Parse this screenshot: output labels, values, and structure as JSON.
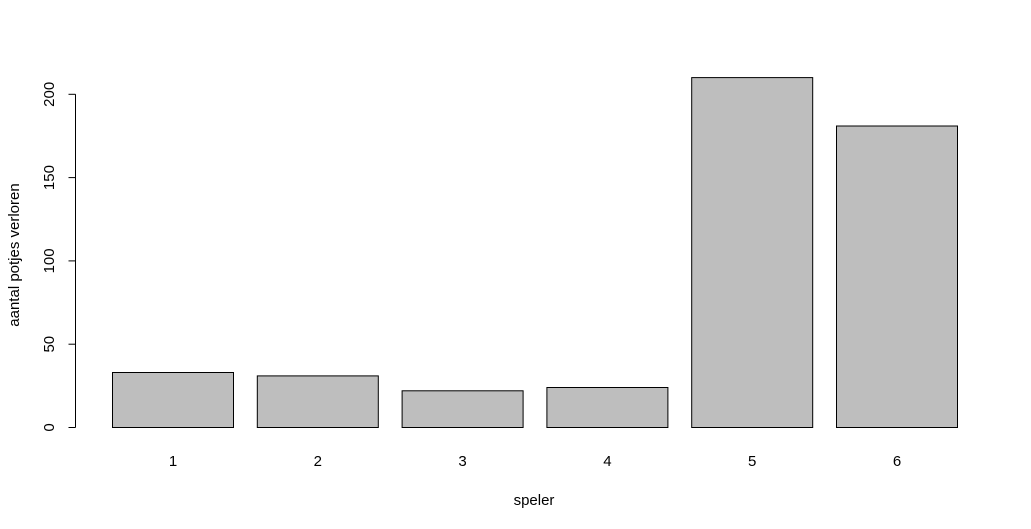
{
  "chart_data": {
    "type": "bar",
    "categories": [
      "1",
      "2",
      "3",
      "4",
      "5",
      "6"
    ],
    "values": [
      33,
      31,
      22,
      24,
      210,
      181
    ],
    "title": "",
    "xlabel": "speler",
    "ylabel": "aantal potjes verloren",
    "ylim": [
      0,
      210
    ],
    "yticks": [
      0,
      50,
      100,
      150,
      200
    ],
    "grid": false,
    "bar_color": "#bebebe",
    "border_color": "#000000"
  }
}
